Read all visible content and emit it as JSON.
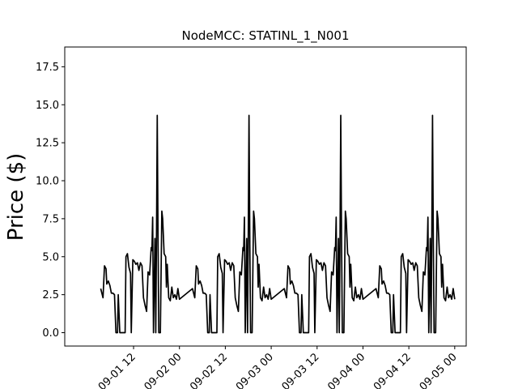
{
  "chart_data": {
    "type": "line",
    "title": "NodeMCC: STATINL_1_N001",
    "xlabel": "",
    "ylabel": "Price ($)",
    "ylim": [
      -0.88,
      18.8
    ],
    "xlim": [
      0.75,
      5.125
    ],
    "grid": false,
    "legend": "none",
    "line_color": "#000000",
    "yticks": [
      0.0,
      2.5,
      5.0,
      7.5,
      10.0,
      12.5,
      15.0,
      17.5
    ],
    "ytick_labels": [
      "0.0",
      "2.5",
      "5.0",
      "7.5",
      "10.0",
      "12.5",
      "15.0",
      "17.5"
    ],
    "xticks": [
      1.5,
      2.0,
      2.5,
      3.0,
      3.5,
      4.0,
      4.5,
      5.0
    ],
    "xtick_labels": [
      "09-01 12",
      "09-02 00",
      "09-02 12",
      "09-03 00",
      "09-03 12",
      "09-04 00",
      "09-04 12",
      "09-05 00"
    ],
    "x_unit": "days since 09-01 00",
    "series": [
      {
        "name": "",
        "points": [
          [
            1.142,
            2.9
          ],
          [
            1.167,
            2.3
          ],
          [
            1.183,
            4.4
          ],
          [
            1.2,
            4.2
          ],
          [
            1.208,
            3.2
          ],
          [
            1.225,
            3.4
          ],
          [
            1.242,
            3.1
          ],
          [
            1.258,
            2.6
          ],
          [
            1.275,
            2.6
          ],
          [
            1.292,
            2.5
          ],
          [
            1.308,
            0.0
          ],
          [
            1.325,
            0.0
          ],
          [
            1.333,
            2.5
          ],
          [
            1.35,
            0.0
          ],
          [
            1.383,
            0.0
          ],
          [
            1.408,
            0.0
          ],
          [
            1.417,
            5.0
          ],
          [
            1.433,
            5.2
          ],
          [
            1.45,
            4.3
          ],
          [
            1.467,
            3.9
          ],
          [
            1.475,
            0.0
          ],
          [
            1.492,
            4.8
          ],
          [
            1.508,
            4.7
          ],
          [
            1.525,
            4.5
          ],
          [
            1.542,
            4.6
          ],
          [
            1.558,
            4.1
          ],
          [
            1.575,
            4.6
          ],
          [
            1.592,
            4.4
          ],
          [
            1.608,
            2.3
          ],
          [
            1.625,
            1.8
          ],
          [
            1.642,
            1.4
          ],
          [
            1.658,
            4.0
          ],
          [
            1.675,
            3.8
          ],
          [
            1.692,
            5.6
          ],
          [
            1.7,
            5.4
          ],
          [
            1.708,
            7.6
          ],
          [
            1.717,
            0.0
          ],
          [
            1.733,
            6.2
          ],
          [
            1.742,
            0.0
          ],
          [
            1.75,
            6.3
          ],
          [
            1.758,
            14.3
          ],
          [
            1.767,
            5.8
          ],
          [
            1.775,
            0.0
          ],
          [
            1.792,
            0.0
          ],
          [
            1.808,
            8.0
          ],
          [
            1.817,
            7.5
          ],
          [
            1.833,
            5.2
          ],
          [
            1.85,
            5.0
          ],
          [
            1.858,
            3.0
          ],
          [
            1.867,
            4.5
          ],
          [
            1.883,
            2.3
          ],
          [
            1.9,
            2.1
          ],
          [
            1.917,
            3.0
          ],
          [
            1.933,
            2.3
          ],
          [
            1.95,
            2.5
          ],
          [
            1.967,
            2.2
          ],
          [
            1.983,
            2.9
          ],
          [
            2.0,
            2.2
          ],
          [
            2.142,
            2.9
          ],
          [
            2.167,
            2.3
          ],
          [
            2.183,
            4.4
          ],
          [
            2.2,
            4.2
          ],
          [
            2.208,
            3.2
          ],
          [
            2.225,
            3.4
          ],
          [
            2.242,
            3.1
          ],
          [
            2.258,
            2.6
          ],
          [
            2.275,
            2.6
          ],
          [
            2.292,
            2.5
          ],
          [
            2.308,
            0.0
          ],
          [
            2.325,
            0.0
          ],
          [
            2.333,
            2.5
          ],
          [
            2.35,
            0.0
          ],
          [
            2.383,
            0.0
          ],
          [
            2.408,
            0.0
          ],
          [
            2.417,
            5.0
          ],
          [
            2.433,
            5.2
          ],
          [
            2.45,
            4.3
          ],
          [
            2.467,
            3.9
          ],
          [
            2.475,
            0.0
          ],
          [
            2.492,
            4.8
          ],
          [
            2.508,
            4.7
          ],
          [
            2.525,
            4.5
          ],
          [
            2.542,
            4.6
          ],
          [
            2.558,
            4.1
          ],
          [
            2.575,
            4.6
          ],
          [
            2.592,
            4.4
          ],
          [
            2.608,
            2.3
          ],
          [
            2.625,
            1.8
          ],
          [
            2.642,
            1.4
          ],
          [
            2.658,
            4.0
          ],
          [
            2.675,
            3.8
          ],
          [
            2.692,
            5.6
          ],
          [
            2.7,
            5.4
          ],
          [
            2.708,
            7.6
          ],
          [
            2.717,
            0.0
          ],
          [
            2.733,
            6.2
          ],
          [
            2.742,
            0.0
          ],
          [
            2.75,
            6.3
          ],
          [
            2.758,
            14.3
          ],
          [
            2.767,
            5.8
          ],
          [
            2.775,
            0.0
          ],
          [
            2.792,
            0.0
          ],
          [
            2.808,
            8.0
          ],
          [
            2.817,
            7.5
          ],
          [
            2.833,
            5.2
          ],
          [
            2.85,
            5.0
          ],
          [
            2.858,
            3.0
          ],
          [
            2.867,
            4.5
          ],
          [
            2.883,
            2.3
          ],
          [
            2.9,
            2.1
          ],
          [
            2.917,
            3.0
          ],
          [
            2.933,
            2.3
          ],
          [
            2.95,
            2.5
          ],
          [
            2.967,
            2.2
          ],
          [
            2.983,
            2.9
          ],
          [
            3.0,
            2.2
          ],
          [
            3.142,
            2.9
          ],
          [
            3.167,
            2.3
          ],
          [
            3.183,
            4.4
          ],
          [
            3.2,
            4.2
          ],
          [
            3.208,
            3.2
          ],
          [
            3.225,
            3.4
          ],
          [
            3.242,
            3.1
          ],
          [
            3.258,
            2.6
          ],
          [
            3.275,
            2.6
          ],
          [
            3.292,
            2.5
          ],
          [
            3.308,
            0.0
          ],
          [
            3.325,
            0.0
          ],
          [
            3.333,
            2.5
          ],
          [
            3.35,
            0.0
          ],
          [
            3.383,
            0.0
          ],
          [
            3.408,
            0.0
          ],
          [
            3.417,
            5.0
          ],
          [
            3.433,
            5.2
          ],
          [
            3.45,
            4.3
          ],
          [
            3.467,
            3.9
          ],
          [
            3.475,
            0.0
          ],
          [
            3.492,
            4.8
          ],
          [
            3.508,
            4.7
          ],
          [
            3.525,
            4.5
          ],
          [
            3.542,
            4.6
          ],
          [
            3.558,
            4.1
          ],
          [
            3.575,
            4.6
          ],
          [
            3.592,
            4.4
          ],
          [
            3.608,
            2.3
          ],
          [
            3.625,
            1.8
          ],
          [
            3.642,
            1.4
          ],
          [
            3.658,
            4.0
          ],
          [
            3.675,
            3.8
          ],
          [
            3.692,
            5.6
          ],
          [
            3.7,
            5.4
          ],
          [
            3.708,
            7.6
          ],
          [
            3.717,
            0.0
          ],
          [
            3.733,
            6.2
          ],
          [
            3.742,
            0.0
          ],
          [
            3.75,
            6.3
          ],
          [
            3.758,
            14.3
          ],
          [
            3.767,
            5.8
          ],
          [
            3.775,
            0.0
          ],
          [
            3.792,
            0.0
          ],
          [
            3.808,
            8.0
          ],
          [
            3.817,
            7.5
          ],
          [
            3.833,
            5.2
          ],
          [
            3.85,
            5.0
          ],
          [
            3.858,
            3.0
          ],
          [
            3.867,
            4.5
          ],
          [
            3.883,
            2.3
          ],
          [
            3.9,
            2.1
          ],
          [
            3.917,
            3.0
          ],
          [
            3.933,
            2.3
          ],
          [
            3.95,
            2.5
          ],
          [
            3.967,
            2.2
          ],
          [
            3.983,
            2.9
          ],
          [
            4.0,
            2.2
          ],
          [
            4.142,
            2.9
          ],
          [
            4.167,
            2.3
          ],
          [
            4.183,
            4.4
          ],
          [
            4.2,
            4.2
          ],
          [
            4.208,
            3.2
          ],
          [
            4.225,
            3.4
          ],
          [
            4.242,
            3.1
          ],
          [
            4.258,
            2.6
          ],
          [
            4.275,
            2.6
          ],
          [
            4.292,
            2.5
          ],
          [
            4.308,
            0.0
          ],
          [
            4.325,
            0.0
          ],
          [
            4.333,
            2.5
          ],
          [
            4.35,
            0.0
          ],
          [
            4.383,
            0.0
          ],
          [
            4.408,
            0.0
          ],
          [
            4.417,
            5.0
          ],
          [
            4.433,
            5.2
          ],
          [
            4.45,
            4.3
          ],
          [
            4.467,
            3.9
          ],
          [
            4.475,
            0.0
          ],
          [
            4.492,
            4.8
          ],
          [
            4.508,
            4.7
          ],
          [
            4.525,
            4.5
          ],
          [
            4.542,
            4.6
          ],
          [
            4.558,
            4.1
          ],
          [
            4.575,
            4.6
          ],
          [
            4.592,
            4.4
          ],
          [
            4.608,
            2.3
          ],
          [
            4.625,
            1.8
          ],
          [
            4.642,
            1.4
          ],
          [
            4.658,
            4.0
          ],
          [
            4.675,
            3.8
          ],
          [
            4.692,
            5.6
          ],
          [
            4.7,
            5.4
          ],
          [
            4.708,
            7.6
          ],
          [
            4.717,
            0.0
          ],
          [
            4.733,
            6.2
          ],
          [
            4.742,
            0.0
          ],
          [
            4.75,
            6.3
          ],
          [
            4.758,
            14.3
          ],
          [
            4.767,
            5.8
          ],
          [
            4.775,
            0.0
          ],
          [
            4.792,
            0.0
          ],
          [
            4.808,
            8.0
          ],
          [
            4.817,
            7.5
          ],
          [
            4.833,
            5.2
          ],
          [
            4.85,
            5.0
          ],
          [
            4.858,
            3.0
          ],
          [
            4.867,
            4.5
          ],
          [
            4.883,
            2.3
          ],
          [
            4.9,
            2.1
          ],
          [
            4.917,
            3.0
          ],
          [
            4.933,
            2.3
          ],
          [
            4.95,
            2.5
          ],
          [
            4.967,
            2.2
          ],
          [
            4.983,
            2.9
          ],
          [
            5.0,
            2.2
          ]
        ]
      }
    ]
  }
}
